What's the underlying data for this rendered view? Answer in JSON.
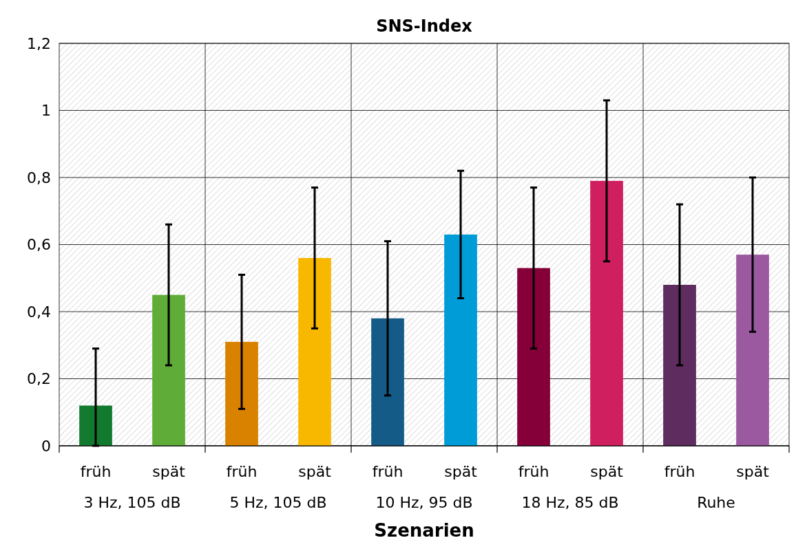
{
  "chart_data": {
    "type": "bar",
    "title": "SNS-Index",
    "xlabel": "Szenarien",
    "categories": [
      "früh",
      "spät",
      "früh",
      "spät",
      "früh",
      "spät",
      "früh",
      "spät",
      "früh",
      "spät"
    ],
    "values": [
      0.12,
      0.45,
      0.31,
      0.56,
      0.38,
      0.63,
      0.53,
      0.79,
      0.48,
      0.57
    ],
    "colors": [
      "#127a2f",
      "#5fad38",
      "#d98200",
      "#f9b800",
      "#145b87",
      "#009cd8",
      "#850039",
      "#cf1f5e",
      "#5e2c5f",
      "#9b59a0"
    ],
    "errors": [
      [
        0,
        0.29
      ],
      0.21,
      0.2,
      0.21,
      0.23,
      0.19,
      0.24,
      0.24,
      0.24,
      0.23
    ],
    "annotations": [
      "3 Hz, 105 dB",
      "5 Hz, 105 dB",
      "10 Hz, 95 dB",
      "18 Hz, 85 dB",
      "Ruhe"
    ],
    "ylim": [
      0,
      1.2
    ],
    "yticks": [
      {
        "value": 0,
        "label": "0"
      },
      {
        "value": 0.2,
        "label": "0,2"
      },
      {
        "value": 0.4,
        "label": "0,4"
      },
      {
        "value": 0.6,
        "label": "0,6"
      },
      {
        "value": 0.8,
        "label": "0,8"
      },
      {
        "value": 1,
        "label": "1"
      },
      {
        "value": 1.2,
        "label": "1,2"
      }
    ],
    "grid": true
  }
}
